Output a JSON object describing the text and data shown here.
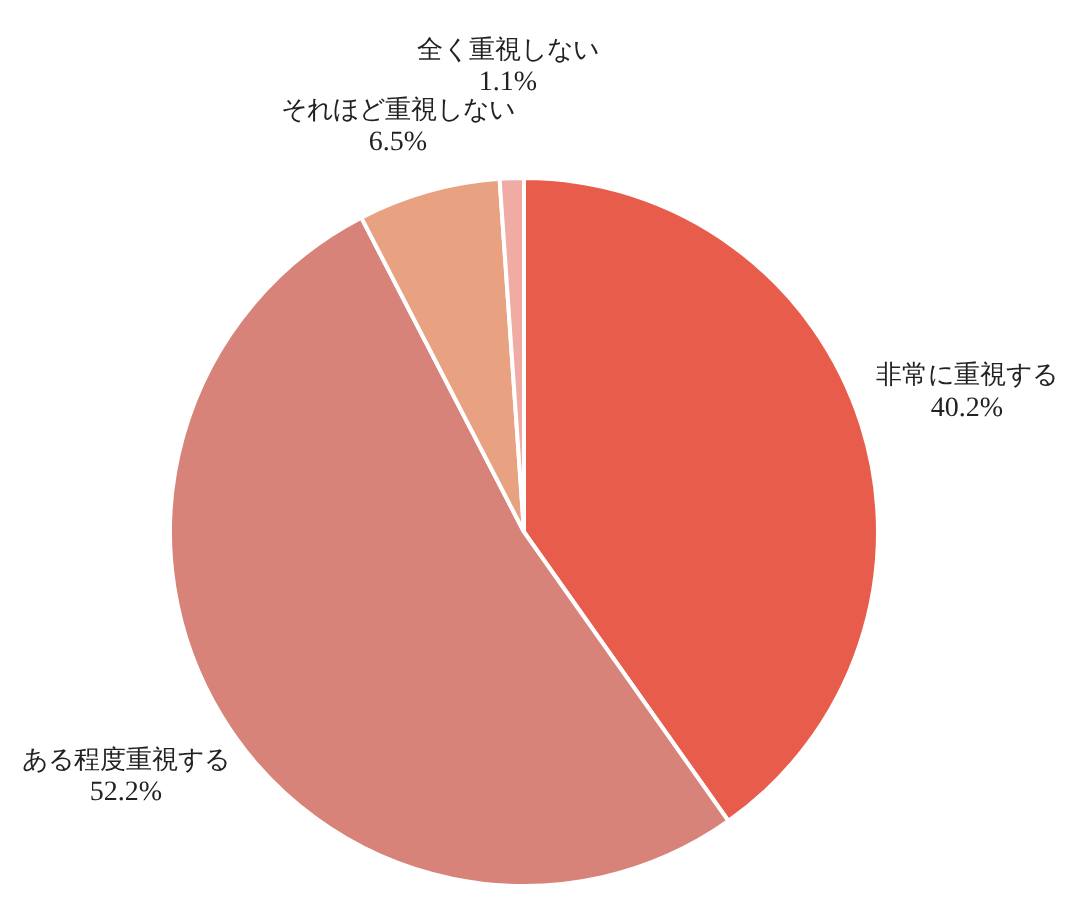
{
  "chart_data": {
    "type": "pie",
    "categories": [
      "非常に重視する",
      "ある程度重視する",
      "それほど重視しない",
      "全く重視しない"
    ],
    "values": [
      40.2,
      52.2,
      6.5,
      1.1
    ],
    "colors": [
      "#e85c4c",
      "#d8837a",
      "#e8a282",
      "#f0aca4"
    ],
    "value_labels": [
      "40.2%",
      "52.2%",
      "6.5%",
      "1.1%"
    ],
    "legend": false
  }
}
